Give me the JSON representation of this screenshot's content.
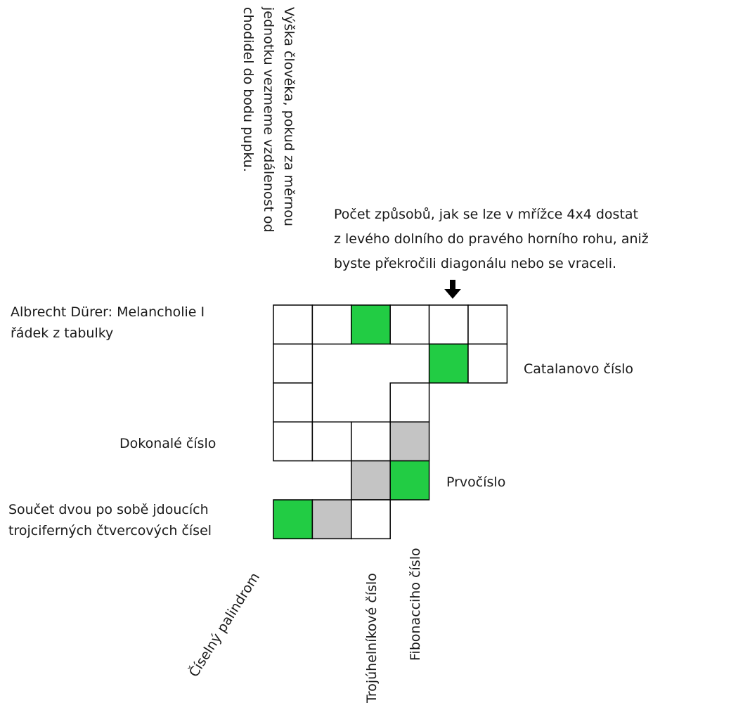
{
  "colors": {
    "filled": "#22cc44",
    "shaded": "#c4c4c4",
    "empty": "#ffffff",
    "border": "#000000"
  },
  "clues": {
    "height_clue": {
      "lines": [
        "Výška člověka, pokud za měrnou",
        "jednotku vezmeme vzdálenost od",
        "chodidel do bodu pupku."
      ]
    },
    "catalan_paths_clue": {
      "lines": [
        "Počet způsobů, jak se lze v mřížce 4x4 dostat",
        "z levého dolního do pravého horního rohu, aniž",
        "byste překročili diagonálu nebo se vraceli."
      ]
    },
    "durer": {
      "lines": [
        "Albrecht Dürer: Melancholie I",
        "řádek z tabulky"
      ]
    },
    "catalan": "Catalanovo číslo",
    "perfect": "Dokonalé číslo",
    "prime": "Prvočíslo",
    "squares_sum": {
      "lines": [
        "Součet dvou po sobě jdoucích",
        "trojciferných čtvercových čísel"
      ]
    },
    "palindrome": "Číselný palindrom",
    "triangular": "Trojúhelníkové číslo",
    "fibonacci": "Fibonacciho číslo"
  },
  "arrow_icon": "arrow-down-icon",
  "grid": {
    "cells": [
      {
        "row": 0,
        "col": 0,
        "fill": "empty"
      },
      {
        "row": 0,
        "col": 1,
        "fill": "empty"
      },
      {
        "row": 0,
        "col": 2,
        "fill": "filled"
      },
      {
        "row": 0,
        "col": 3,
        "fill": "empty"
      },
      {
        "row": 0,
        "col": 4,
        "fill": "empty"
      },
      {
        "row": 0,
        "col": 5,
        "fill": "empty"
      },
      {
        "row": 1,
        "col": 0,
        "fill": "empty"
      },
      {
        "row": 1,
        "col": 4,
        "fill": "filled"
      },
      {
        "row": 1,
        "col": 5,
        "fill": "empty"
      },
      {
        "row": 2,
        "col": 0,
        "fill": "empty"
      },
      {
        "row": 2,
        "col": 3,
        "fill": "empty"
      },
      {
        "row": 3,
        "col": 0,
        "fill": "empty"
      },
      {
        "row": 3,
        "col": 1,
        "fill": "empty"
      },
      {
        "row": 3,
        "col": 2,
        "fill": "empty"
      },
      {
        "row": 3,
        "col": 3,
        "fill": "shaded"
      },
      {
        "row": 4,
        "col": 2,
        "fill": "shaded"
      },
      {
        "row": 4,
        "col": 3,
        "fill": "filled"
      },
      {
        "row": 5,
        "col": 0,
        "fill": "filled"
      },
      {
        "row": 5,
        "col": 1,
        "fill": "shaded"
      },
      {
        "row": 5,
        "col": 2,
        "fill": "empty"
      }
    ]
  }
}
